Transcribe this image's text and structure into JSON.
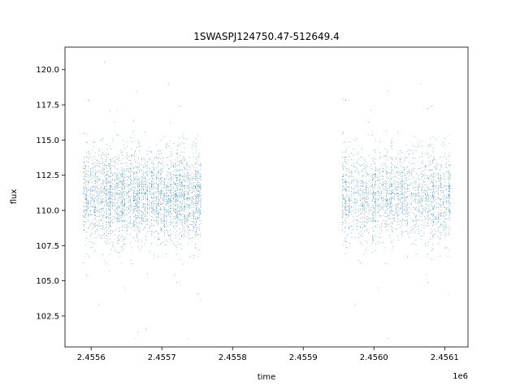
{
  "chart_data": {
    "type": "scatter",
    "title": "1SWASPJ124750.47-512649.4",
    "xlabel": "time",
    "ylabel": "flux",
    "x_offset_label": "1e6",
    "xlim": [
      2455563,
      2456133
    ],
    "ylim": [
      100.3,
      121.6
    ],
    "x_ticks": [
      2455600,
      2455700,
      2455800,
      2455900,
      2456000,
      2456100
    ],
    "x_tick_labels": [
      "2.4556",
      "2.4557",
      "2.4558",
      "2.4559",
      "2.4560",
      "2.4561"
    ],
    "y_ticks": [
      102.5,
      105.0,
      107.5,
      110.0,
      112.5,
      115.0,
      117.5,
      120.0
    ],
    "y_tick_labels": [
      "102.5",
      "105.0",
      "107.5",
      "110.0",
      "112.5",
      "115.0",
      "117.5",
      "120.0"
    ],
    "grid": false,
    "marker_color": "#1f77b4",
    "segments": [
      {
        "x_start": 2455589,
        "x_end": 2455756,
        "y_center": 111.0,
        "y_spread": 1.6,
        "count": 3200
      },
      {
        "x_start": 2455955,
        "x_end": 2456107,
        "y_center": 111.0,
        "y_spread": 1.6,
        "count": 3600
      }
    ]
  }
}
